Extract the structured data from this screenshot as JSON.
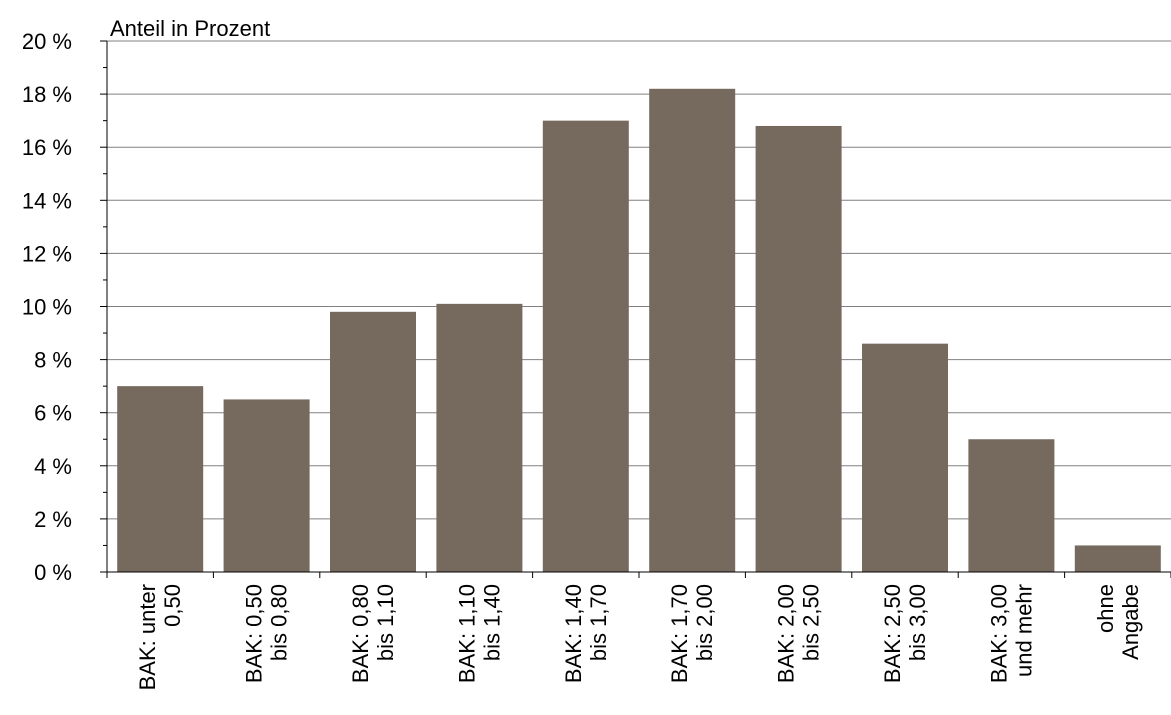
{
  "chart_data": {
    "type": "bar",
    "ylabel": "Anteil in Prozent",
    "categories": [
      [
        "BAK: unter",
        "0,50"
      ],
      [
        "BAK: 0,50",
        "bis 0,80"
      ],
      [
        "BAK: 0,80",
        "bis 1,10"
      ],
      [
        "BAK: 1,10",
        "bis 1,40"
      ],
      [
        "BAK: 1,40",
        "bis 1,70"
      ],
      [
        "BAK: 1,70",
        "bis 2,00"
      ],
      [
        "BAK: 2,00",
        "bis 2,50"
      ],
      [
        "BAK: 2,50",
        "bis 3,00"
      ],
      [
        "BAK: 3,00",
        "und mehr"
      ],
      [
        "ohne",
        "Angabe"
      ]
    ],
    "values": [
      7.0,
      6.5,
      9.8,
      10.1,
      17.0,
      18.2,
      16.8,
      8.6,
      5.0,
      1.0
    ],
    "ylim": [
      0,
      20
    ],
    "yticks": [
      "0 %",
      "2 %",
      "4 %",
      "6 %",
      "8 %",
      "10 %",
      "12 %",
      "14 %",
      "16 %",
      "18 %",
      "20 %"
    ],
    "grid": true,
    "colors": {
      "bar": "#76695e",
      "grid": "#808080",
      "axis": "#000000"
    }
  }
}
